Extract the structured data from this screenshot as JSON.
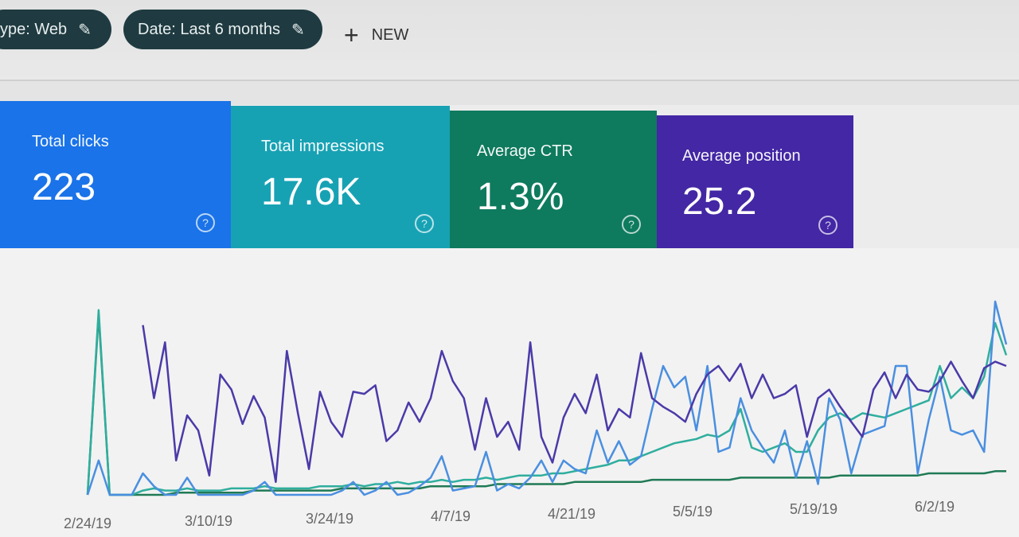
{
  "filters": {
    "type_chip": "ype: Web",
    "date_chip": "Date: Last 6 months",
    "new_label": "NEW"
  },
  "cards": [
    {
      "title": "Total clicks",
      "value": "223",
      "color": "#1a73e8"
    },
    {
      "title": "Total impressions",
      "value": "17.6K",
      "color": "#17a2b4"
    },
    {
      "title": "Average CTR",
      "value": "1.3%",
      "color": "#0e7a5e"
    },
    {
      "title": "Average position",
      "value": "25.2",
      "color": "#4327a4"
    }
  ],
  "help_glyph": "?",
  "chart_data": {
    "type": "line",
    "x_tick_labels": [
      "2/24/19",
      "3/10/19",
      "3/24/19",
      "4/7/19",
      "4/21/19",
      "5/5/19",
      "5/19/19",
      "6/2/19"
    ],
    "grid": false,
    "series": [
      {
        "color": "#4a3aa8",
        "values": [
          100,
          null,
          null,
          null,
          null,
          79,
          45,
          71,
          16,
          37,
          30,
          9,
          56,
          49,
          33,
          46,
          36,
          6,
          67,
          38,
          12,
          48,
          34,
          27,
          48,
          47,
          51,
          25,
          30,
          43,
          34,
          45,
          67,
          53,
          45,
          21,
          45,
          27,
          34,
          21,
          71,
          27,
          15,
          36,
          47,
          38,
          56,
          30,
          40,
          36,
          66,
          45,
          41,
          38,
          34,
          47,
          56,
          60,
          53,
          61,
          45,
          56,
          45,
          47,
          51,
          27,
          45,
          49,
          41,
          34,
          27,
          49,
          57,
          45,
          56,
          49,
          48,
          53,
          62,
          53,
          45,
          59,
          62,
          60
        ]
      },
      {
        "color": "#4a8fe0",
        "values": [
          0,
          16,
          0,
          0,
          0,
          10,
          4,
          0,
          0,
          8,
          0,
          0,
          0,
          0,
          0,
          2,
          6,
          0,
          0,
          0,
          0,
          0,
          0,
          2,
          6,
          0,
          2,
          6,
          0,
          1,
          4,
          8,
          18,
          2,
          3,
          4,
          20,
          2,
          5,
          3,
          8,
          16,
          6,
          16,
          12,
          10,
          30,
          15,
          25,
          14,
          18,
          40,
          60,
          50,
          55,
          30,
          60,
          20,
          22,
          45,
          30,
          22,
          15,
          30,
          8,
          25,
          5,
          45,
          35,
          10,
          28,
          30,
          32,
          60,
          60,
          10,
          35,
          55,
          30,
          28,
          30,
          20,
          90,
          70
        ]
      },
      {
        "color": "#2fae9e",
        "values": [
          0,
          86,
          0,
          0,
          0,
          2,
          3,
          2,
          2,
          3,
          2,
          2,
          2,
          3,
          3,
          3,
          4,
          3,
          3,
          3,
          3,
          4,
          4,
          4,
          5,
          4,
          5,
          5,
          6,
          5,
          6,
          6,
          7,
          6,
          7,
          7,
          8,
          7,
          8,
          9,
          9,
          9,
          10,
          10,
          11,
          12,
          13,
          14,
          16,
          16,
          18,
          20,
          22,
          24,
          25,
          26,
          28,
          27,
          30,
          40,
          22,
          20,
          22,
          24,
          20,
          20,
          30,
          36,
          38,
          35,
          38,
          37,
          36,
          38,
          40,
          42,
          44,
          60,
          45,
          50,
          45,
          55,
          80,
          65
        ]
      },
      {
        "color": "#1f7a55",
        "values": [
          0,
          84,
          0,
          0,
          0,
          0,
          0,
          0,
          1,
          1,
          1,
          1,
          1,
          1,
          1,
          2,
          2,
          2,
          2,
          2,
          2,
          2,
          2,
          3,
          3,
          3,
          3,
          3,
          3,
          3,
          3,
          4,
          4,
          4,
          4,
          4,
          4,
          5,
          5,
          5,
          5,
          5,
          5,
          5,
          6,
          6,
          6,
          6,
          6,
          6,
          6,
          7,
          7,
          7,
          7,
          7,
          7,
          7,
          7,
          8,
          8,
          8,
          8,
          8,
          8,
          8,
          8,
          8,
          9,
          9,
          9,
          9,
          9,
          9,
          9,
          9,
          10,
          10,
          10,
          10,
          10,
          10,
          11,
          11
        ]
      }
    ]
  }
}
